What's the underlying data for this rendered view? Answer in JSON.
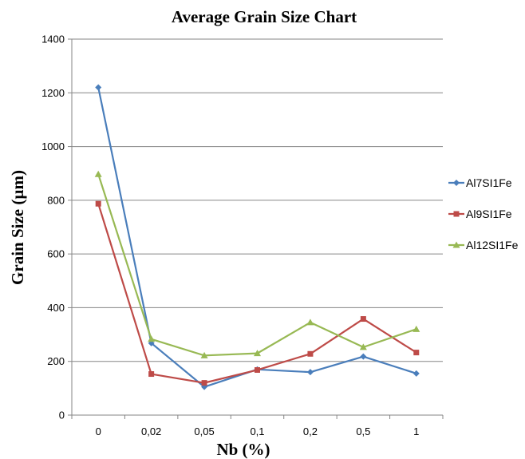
{
  "chart_data": {
    "type": "line",
    "title": "Average Grain Size Chart",
    "xlabel": "Nb (%)",
    "ylabel": "Grain Size (µm)",
    "categories": [
      "0",
      "0,02",
      "0,05",
      "0,1",
      "0,2",
      "0,5",
      "1"
    ],
    "ylim": [
      0,
      1400
    ],
    "yticks": [
      0,
      200,
      400,
      600,
      800,
      1000,
      1200,
      1400
    ],
    "grid": true,
    "legend_position": "right",
    "series": [
      {
        "name": "Al7SI1Fe",
        "color": "#4a7ebb",
        "marker": "diamond",
        "values": [
          1220,
          268,
          105,
          170,
          160,
          218,
          155
        ]
      },
      {
        "name": "Al9SI1Fe",
        "color": "#be4b48",
        "marker": "square",
        "values": [
          787,
          153,
          120,
          168,
          228,
          358,
          233
        ]
      },
      {
        "name": "Al12SI1Fe",
        "color": "#98b954",
        "marker": "triangle",
        "values": [
          897,
          283,
          222,
          230,
          345,
          253,
          320
        ]
      }
    ]
  }
}
